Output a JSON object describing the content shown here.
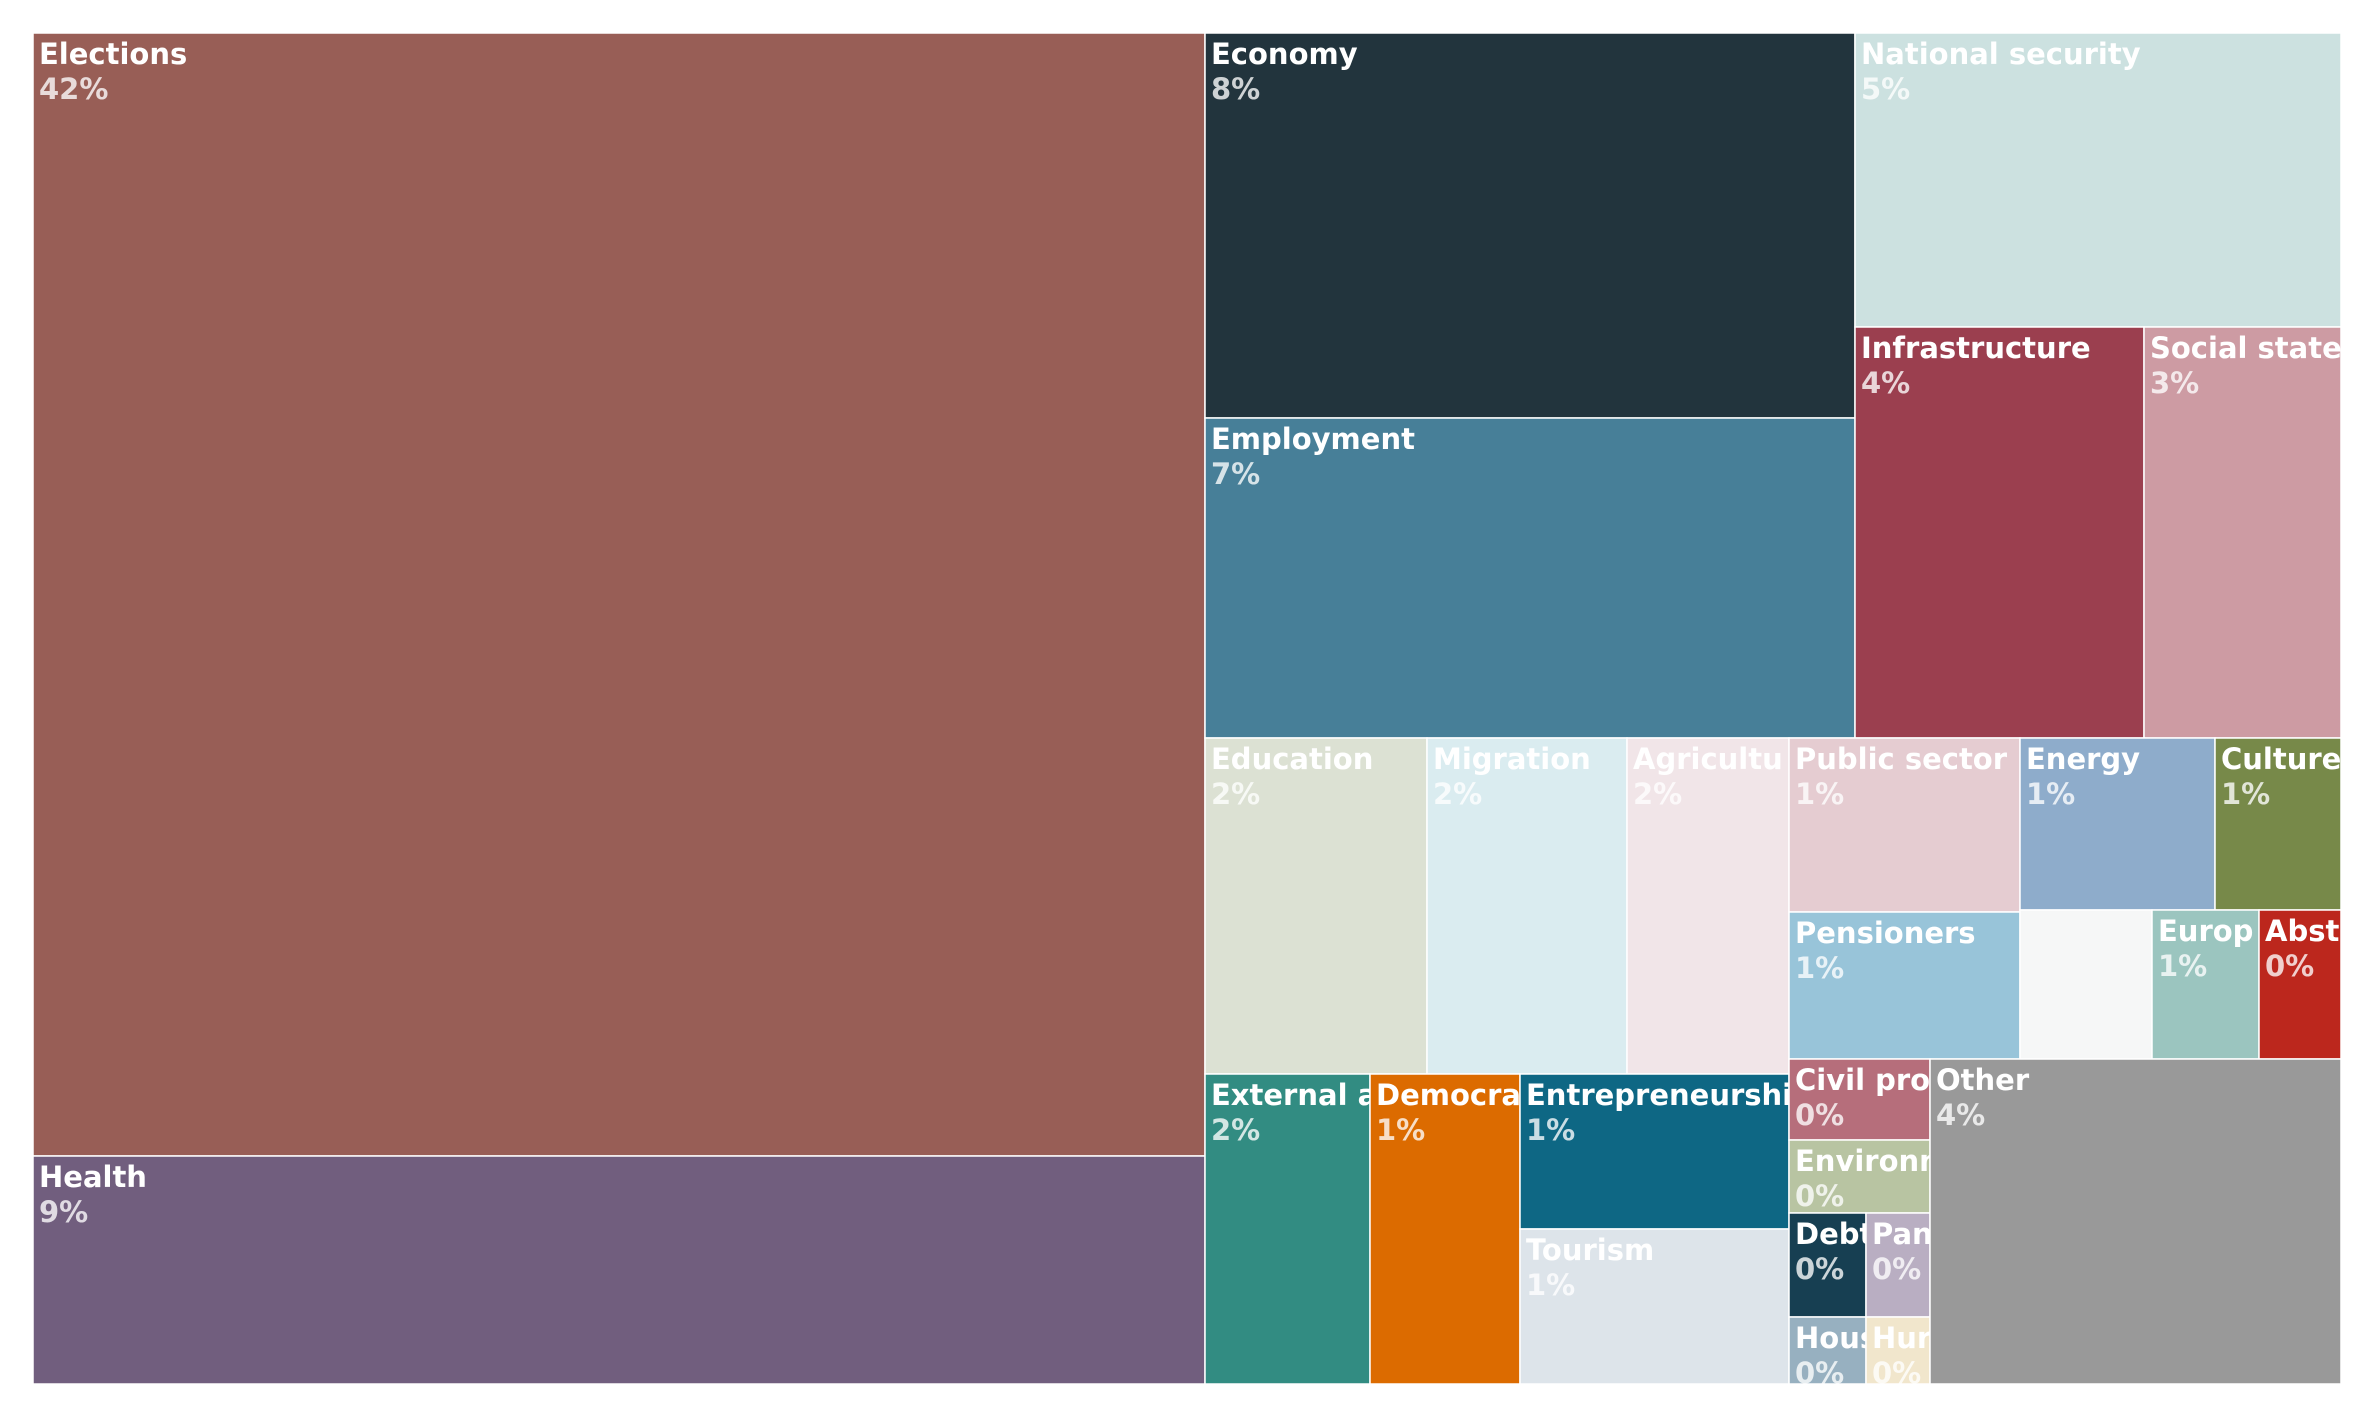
{
  "chart_data": {
    "type": "treemap",
    "unit": "%",
    "items": [
      {
        "name": "Elections",
        "label": "Elections",
        "value": 42,
        "value_label": "42%",
        "color": "#985e56"
      },
      {
        "name": "Health",
        "label": "Health",
        "value": 9,
        "value_label": "9%",
        "color": "#715e7e"
      },
      {
        "name": "Economy",
        "label": "Economy",
        "value": 8,
        "value_label": "8%",
        "color": "#22343d"
      },
      {
        "name": "Employment",
        "label": "Employment",
        "value": 7,
        "value_label": "7%",
        "color": "#477f98"
      },
      {
        "name": "National security",
        "label": "National security",
        "value": 5,
        "value_label": "5%",
        "color": "#cce1e0"
      },
      {
        "name": "Infrastructure",
        "label": "Infrastructure",
        "value": 4,
        "value_label": "4%",
        "color": "#9b3f4f"
      },
      {
        "name": "Social state",
        "label": "Social state",
        "value": 3,
        "value_label": "3%",
        "color": "#cd9ba3"
      },
      {
        "name": "Education",
        "label": "Education",
        "value": 2,
        "value_label": "2%",
        "color": "#dce1d3"
      },
      {
        "name": "Migration",
        "label": "Migration",
        "value": 2,
        "value_label": "2%",
        "color": "#daecf0"
      },
      {
        "name": "Agriculture",
        "label": "Agricultu",
        "value": 2,
        "value_label": "2%",
        "color": "#f1e5e8"
      },
      {
        "name": "Public sector",
        "label": "Public sector",
        "value": 1,
        "value_label": "1%",
        "color": "#e5ccd1"
      },
      {
        "name": "Energy",
        "label": "Energy",
        "value": 1,
        "value_label": "1%",
        "color": "#8eaccb"
      },
      {
        "name": "Culture",
        "label": "Culture",
        "value": 1,
        "value_label": "1%",
        "color": "#778949"
      },
      {
        "name": "Pensioners",
        "label": "Pensioners",
        "value": 1,
        "value_label": "1%",
        "color": "#98c4d9"
      },
      {
        "name": "(unlabeled)",
        "label": "",
        "value": 0,
        "value_label": "",
        "color": "#f6f7f7"
      },
      {
        "name": "Europe",
        "label": "Europ",
        "value": 1,
        "value_label": "1%",
        "color": "#9bc5bf"
      },
      {
        "name": "Abst",
        "label": "Abst",
        "value": 0,
        "value_label": "0%",
        "color": "#bc271d"
      },
      {
        "name": "External affairs",
        "label": "External a",
        "value": 2,
        "value_label": "2%",
        "color": "#328c82"
      },
      {
        "name": "Democracy",
        "label": "Democra",
        "value": 1,
        "value_label": "1%",
        "color": "#dc6b00"
      },
      {
        "name": "Entrepreneurship",
        "label": "Entrepreneurshi",
        "value": 1,
        "value_label": "1%",
        "color": "#0e6784"
      },
      {
        "name": "Tourism",
        "label": "Tourism",
        "value": 1,
        "value_label": "1%",
        "color": "#dde4ea"
      },
      {
        "name": "Civil protection",
        "label": "Civil pro",
        "value": 0,
        "value_label": "0%",
        "color": "#b66e7b"
      },
      {
        "name": "Environment",
        "label": "Environm",
        "value": 0,
        "value_label": "0%",
        "color": "#b8c4a2"
      },
      {
        "name": "Debt",
        "label": "Debt",
        "value": 0,
        "value_label": "0%",
        "color": "#173f52"
      },
      {
        "name": "Pandemic",
        "label": "Pan",
        "value": 0,
        "value_label": "0%",
        "color": "#b9aec2"
      },
      {
        "name": "Housing",
        "label": "Hous",
        "value": 0,
        "value_label": "0%",
        "color": "#97b0c0"
      },
      {
        "name": "Human rights",
        "label": "Hur",
        "value": 0,
        "value_label": "0%",
        "color": "#f1e6cc"
      },
      {
        "name": "Other",
        "label": "Other",
        "value": 4,
        "value_label": "4%",
        "color": "#999999"
      }
    ]
  }
}
